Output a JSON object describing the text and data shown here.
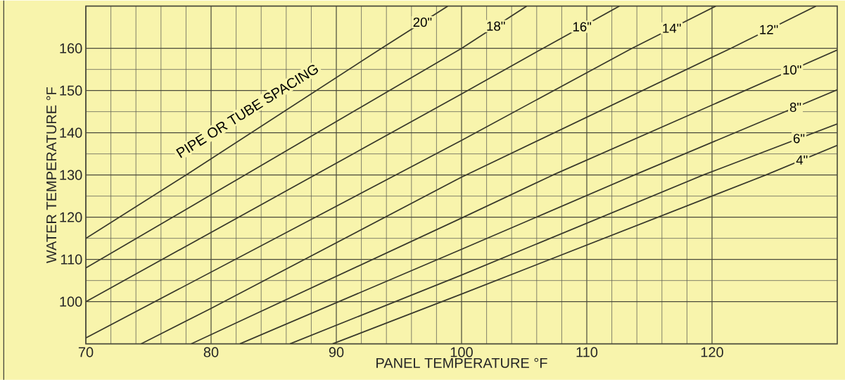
{
  "chart_data": {
    "type": "line",
    "xlabel": "PANEL TEMPERATURE °F",
    "ylabel": "WATER TEMPERATURE °F",
    "annotations": [
      "PIPE OR TUBE SPACING"
    ],
    "xlim": [
      70,
      130
    ],
    "ylim": [
      90,
      170
    ],
    "xticks": [
      70,
      80,
      90,
      100,
      110,
      120
    ],
    "yticks": [
      100,
      110,
      120,
      130,
      140,
      150,
      160
    ],
    "grid": true,
    "series": [
      {
        "name": "20\"",
        "color": "#3a3a2c",
        "x": [
          70,
          78,
          93.6,
          98.9
        ],
        "values": [
          115,
          130,
          160,
          170
        ]
      },
      {
        "name": "18\"",
        "color": "#3a3a2c",
        "x": [
          70,
          80,
          100,
          105.2
        ],
        "values": [
          108,
          125.3,
          160,
          170
        ]
      },
      {
        "name": "16\"",
        "color": "#3a3a2c",
        "x": [
          70,
          100,
          106.5,
          112.6
        ],
        "values": [
          100,
          149.2,
          160,
          170
        ]
      },
      {
        "name": "14\"",
        "color": "#3a3a2c",
        "x": [
          70,
          100,
          113.6,
          120.3
        ],
        "values": [
          91.4,
          138.2,
          160,
          170
        ]
      },
      {
        "name": "12\"",
        "color": "#3a3a2c",
        "x": [
          74.4,
          80,
          100,
          121.5,
          128.3
        ],
        "values": [
          90,
          98.4,
          129.5,
          160,
          170
        ]
      },
      {
        "name": "10\"",
        "color": "#3a3a2c",
        "x": [
          78.4,
          100,
          107.3,
          130
        ],
        "values": [
          90,
          119.8,
          130,
          159.6
        ]
      },
      {
        "name": "8\"",
        "color": "#3a3a2c",
        "x": [
          82.3,
          100,
          113.8,
          130
        ],
        "values": [
          90,
          112.4,
          130,
          150.2
        ]
      },
      {
        "name": "6\"",
        "color": "#3a3a2c",
        "x": [
          86.3,
          100,
          119.3,
          130
        ],
        "values": [
          90,
          106.3,
          130,
          142.1
        ]
      },
      {
        "name": "4\"",
        "color": "#3a3a2c",
        "x": [
          89.7,
          100,
          124.3,
          130
        ],
        "values": [
          90,
          101.8,
          130,
          137
        ]
      }
    ]
  }
}
